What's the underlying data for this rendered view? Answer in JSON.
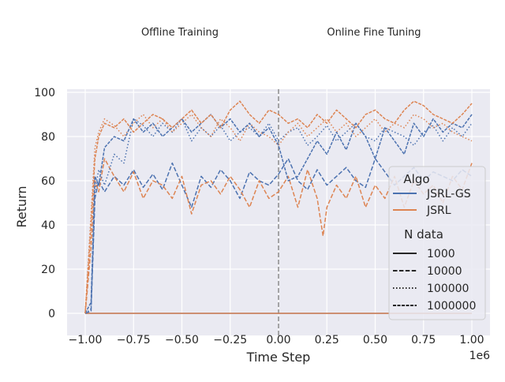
{
  "chart_data": {
    "type": "line",
    "annotations": [
      "Offline Training",
      "Online Fine Tuning"
    ],
    "xlabel": "Time Step",
    "ylabel": "Return",
    "x_offset_label": "1e6",
    "xlim": [
      -1.0,
      1.0
    ],
    "ylim": [
      -5,
      102
    ],
    "xticks": [
      -1.0,
      -0.75,
      -0.5,
      -0.25,
      0.0,
      0.25,
      0.5,
      0.75,
      1.0
    ],
    "xtick_labels": [
      "−1.00",
      "−0.75",
      "−0.50",
      "−0.25",
      "0.00",
      "0.25",
      "0.50",
      "0.75",
      "1.00"
    ],
    "yticks": [
      0,
      20,
      40,
      60,
      80,
      100
    ],
    "ytick_labels": [
      "0",
      "20",
      "40",
      "60",
      "80",
      "100"
    ],
    "grid": true,
    "vline": {
      "x": 0.0,
      "style": "dashed",
      "color": "#8c8c8c"
    },
    "legend": {
      "placement": "right",
      "hue_title": "Algo",
      "hue_entries": [
        {
          "label": "JSRL-GS",
          "color": "#4c72b0"
        },
        {
          "label": "JSRL",
          "color": "#dd8452"
        }
      ],
      "style_title": "N data",
      "style_entries": [
        {
          "label": "1000",
          "dash": "solid"
        },
        {
          "label": "10000",
          "dash": "dashed"
        },
        {
          "label": "100000",
          "dash": "dotted"
        },
        {
          "label": "1000000",
          "dash": "densely-dashed"
        }
      ]
    },
    "series": [
      {
        "algo": "JSRL-GS",
        "n_data": "1000",
        "color": "#4c72b0",
        "dash": "solid",
        "x": [
          -1.0,
          1.0
        ],
        "y": [
          0,
          0
        ]
      },
      {
        "algo": "JSRL",
        "n_data": "1000",
        "color": "#dd8452",
        "dash": "solid",
        "x": [
          -1.0,
          1.0
        ],
        "y": [
          0,
          0
        ]
      },
      {
        "algo": "JSRL-GS",
        "n_data": "10000",
        "color": "#4c72b0",
        "dash": "dashed",
        "x": [
          -1.0,
          -0.97,
          -0.95,
          -0.93,
          -0.9,
          -0.85,
          -0.8,
          -0.75,
          -0.7,
          -0.65,
          -0.6,
          -0.55,
          -0.5,
          -0.45,
          -0.4,
          -0.35,
          -0.3,
          -0.25,
          -0.2,
          -0.15,
          -0.1,
          -0.05,
          0.0,
          0.05,
          0.1,
          0.15,
          0.2,
          0.25,
          0.3,
          0.35,
          0.4,
          0.45,
          0.5,
          0.55,
          0.6,
          0.65,
          0.7,
          0.75,
          0.8,
          0.85,
          0.9,
          0.95,
          1.0
        ],
        "y": [
          0,
          1,
          52,
          60,
          55,
          62,
          58,
          65,
          57,
          63,
          56,
          68,
          58,
          48,
          62,
          57,
          65,
          60,
          52,
          64,
          60,
          58,
          63,
          70,
          60,
          56,
          65,
          58,
          62,
          66,
          60,
          57,
          70,
          64,
          58,
          62,
          66,
          60,
          64,
          62,
          60,
          65,
          62
        ]
      },
      {
        "algo": "JSRL",
        "n_data": "10000",
        "color": "#dd8452",
        "dash": "dashed",
        "x": [
          -1.0,
          -0.97,
          -0.95,
          -0.93,
          -0.9,
          -0.85,
          -0.8,
          -0.75,
          -0.7,
          -0.65,
          -0.6,
          -0.55,
          -0.5,
          -0.45,
          -0.4,
          -0.35,
          -0.3,
          -0.25,
          -0.2,
          -0.15,
          -0.1,
          -0.05,
          0.0,
          0.05,
          0.1,
          0.15,
          0.2,
          0.23,
          0.25,
          0.3,
          0.35,
          0.4,
          0.45,
          0.5,
          0.55,
          0.6,
          0.65,
          0.7,
          0.75,
          0.8,
          0.85,
          0.9,
          0.95,
          1.0
        ],
        "y": [
          0,
          30,
          60,
          55,
          70,
          62,
          55,
          64,
          52,
          60,
          58,
          52,
          62,
          45,
          58,
          60,
          54,
          62,
          56,
          48,
          60,
          52,
          55,
          62,
          48,
          65,
          52,
          35,
          48,
          58,
          52,
          62,
          48,
          58,
          52,
          62,
          48,
          60,
          54,
          58,
          50,
          62,
          56,
          68
        ]
      },
      {
        "algo": "JSRL-GS",
        "n_data": "100000",
        "color": "#4c72b0",
        "dash": "dotted",
        "x": [
          -1.0,
          -0.97,
          -0.95,
          -0.93,
          -0.9,
          -0.85,
          -0.8,
          -0.75,
          -0.7,
          -0.65,
          -0.6,
          -0.55,
          -0.5,
          -0.45,
          -0.4,
          -0.35,
          -0.3,
          -0.25,
          -0.2,
          -0.15,
          -0.1,
          -0.05,
          0.0,
          0.05,
          0.1,
          0.15,
          0.2,
          0.25,
          0.3,
          0.35,
          0.4,
          0.45,
          0.5,
          0.55,
          0.6,
          0.65,
          0.7,
          0.75,
          0.8,
          0.85,
          0.9,
          0.95,
          1.0
        ],
        "y": [
          0,
          2,
          55,
          65,
          58,
          72,
          68,
          88,
          85,
          80,
          86,
          82,
          88,
          78,
          84,
          80,
          85,
          78,
          82,
          84,
          80,
          86,
          78,
          82,
          84,
          76,
          80,
          85,
          78,
          82,
          86,
          80,
          78,
          84,
          82,
          80,
          76,
          82,
          85,
          78,
          84,
          80,
          86
        ]
      },
      {
        "algo": "JSRL",
        "n_data": "100000",
        "color": "#dd8452",
        "dash": "dotted",
        "x": [
          -1.0,
          -0.97,
          -0.95,
          -0.93,
          -0.9,
          -0.85,
          -0.8,
          -0.75,
          -0.7,
          -0.65,
          -0.6,
          -0.55,
          -0.5,
          -0.45,
          -0.4,
          -0.35,
          -0.3,
          -0.25,
          -0.2,
          -0.15,
          -0.1,
          -0.05,
          0.0,
          0.05,
          0.1,
          0.15,
          0.2,
          0.25,
          0.3,
          0.35,
          0.4,
          0.45,
          0.5,
          0.55,
          0.6,
          0.65,
          0.7,
          0.75,
          0.8,
          0.85,
          0.9,
          0.95,
          1.0
        ],
        "y": [
          0,
          45,
          75,
          82,
          88,
          85,
          80,
          86,
          90,
          84,
          88,
          82,
          86,
          90,
          84,
          80,
          88,
          84,
          78,
          86,
          82,
          80,
          76,
          82,
          86,
          80,
          84,
          88,
          82,
          86,
          80,
          84,
          88,
          82,
          86,
          84,
          90,
          88,
          84,
          86,
          82,
          80,
          78
        ]
      },
      {
        "algo": "JSRL-GS",
        "n_data": "1000000",
        "color": "#4c72b0",
        "dash": "densely-dashed",
        "x": [
          -1.0,
          -0.97,
          -0.95,
          -0.93,
          -0.9,
          -0.85,
          -0.8,
          -0.75,
          -0.7,
          -0.65,
          -0.6,
          -0.55,
          -0.5,
          -0.45,
          -0.4,
          -0.35,
          -0.3,
          -0.25,
          -0.2,
          -0.15,
          -0.1,
          -0.05,
          0.0,
          0.05,
          0.1,
          0.15,
          0.2,
          0.25,
          0.3,
          0.35,
          0.4,
          0.45,
          0.5,
          0.55,
          0.6,
          0.65,
          0.7,
          0.75,
          0.8,
          0.85,
          0.9,
          0.95,
          1.0
        ],
        "y": [
          0,
          5,
          62,
          58,
          75,
          80,
          78,
          88,
          82,
          86,
          80,
          84,
          88,
          82,
          86,
          90,
          84,
          88,
          82,
          86,
          80,
          84,
          76,
          60,
          62,
          70,
          78,
          72,
          82,
          74,
          86,
          80,
          70,
          84,
          78,
          72,
          86,
          80,
          88,
          82,
          86,
          84,
          90
        ]
      },
      {
        "algo": "JSRL",
        "n_data": "1000000",
        "color": "#dd8452",
        "dash": "densely-dashed",
        "x": [
          -1.0,
          -0.97,
          -0.95,
          -0.93,
          -0.9,
          -0.85,
          -0.8,
          -0.75,
          -0.7,
          -0.65,
          -0.6,
          -0.55,
          -0.5,
          -0.45,
          -0.4,
          -0.35,
          -0.3,
          -0.25,
          -0.2,
          -0.15,
          -0.1,
          -0.05,
          0.0,
          0.05,
          0.1,
          0.15,
          0.2,
          0.25,
          0.3,
          0.35,
          0.4,
          0.45,
          0.5,
          0.55,
          0.6,
          0.65,
          0.7,
          0.75,
          0.8,
          0.85,
          0.9,
          0.95,
          1.0
        ],
        "y": [
          0,
          40,
          70,
          80,
          86,
          84,
          88,
          82,
          86,
          90,
          88,
          84,
          88,
          92,
          86,
          90,
          84,
          92,
          96,
          90,
          86,
          92,
          90,
          86,
          88,
          84,
          90,
          86,
          92,
          88,
          84,
          90,
          92,
          88,
          86,
          92,
          96,
          94,
          90,
          88,
          86,
          90,
          95
        ]
      }
    ]
  }
}
